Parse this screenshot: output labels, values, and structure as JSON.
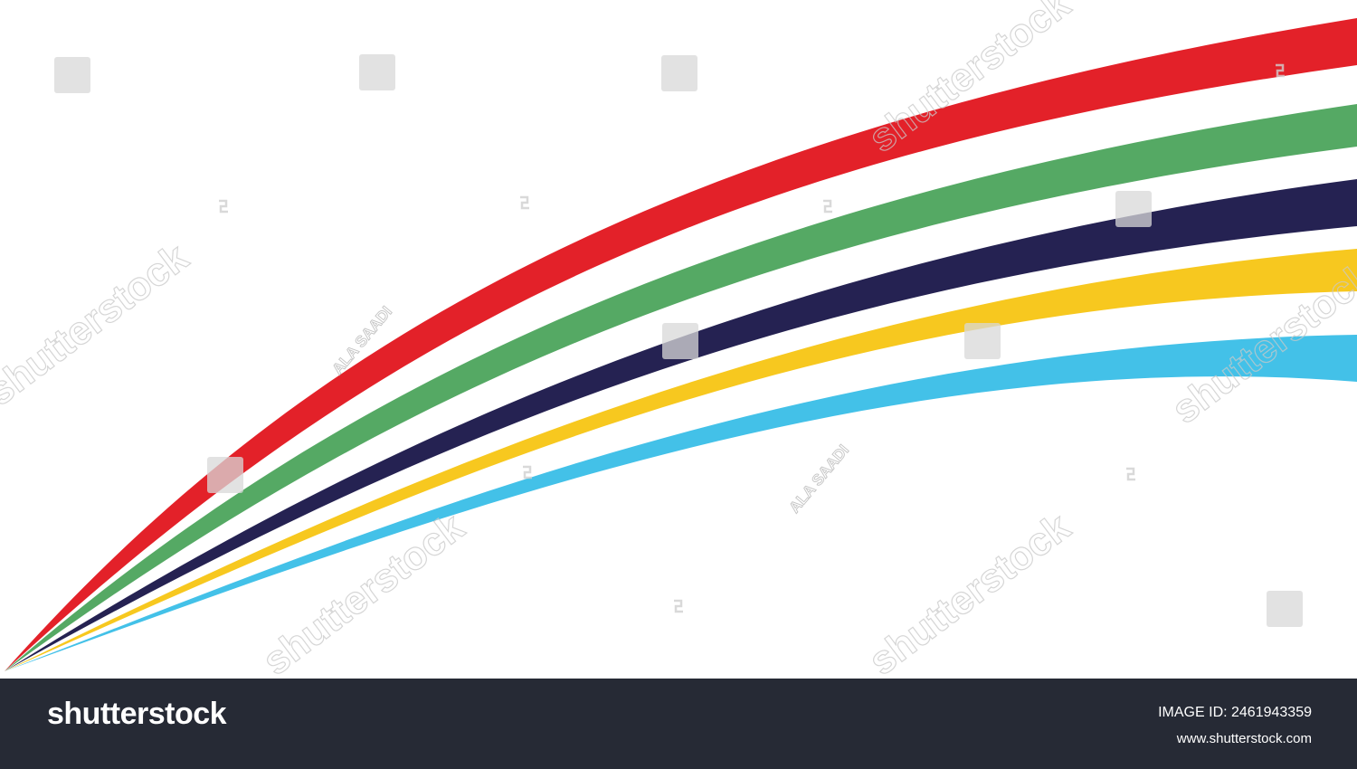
{
  "image": {
    "colors": {
      "background": "#ffffff",
      "red": "#e32129",
      "green": "#55a964",
      "navy": "#252252",
      "yellow": "#f7c81f",
      "cyan": "#43c1e8"
    }
  },
  "watermarks": {
    "brand": "shutterstock",
    "author": "ALA SAADI"
  },
  "footer": {
    "background": "#262a35",
    "logo": "shutterstock",
    "image_id_label": "IMAGE ID: 2461943359",
    "url": "www.shutterstock.com"
  }
}
